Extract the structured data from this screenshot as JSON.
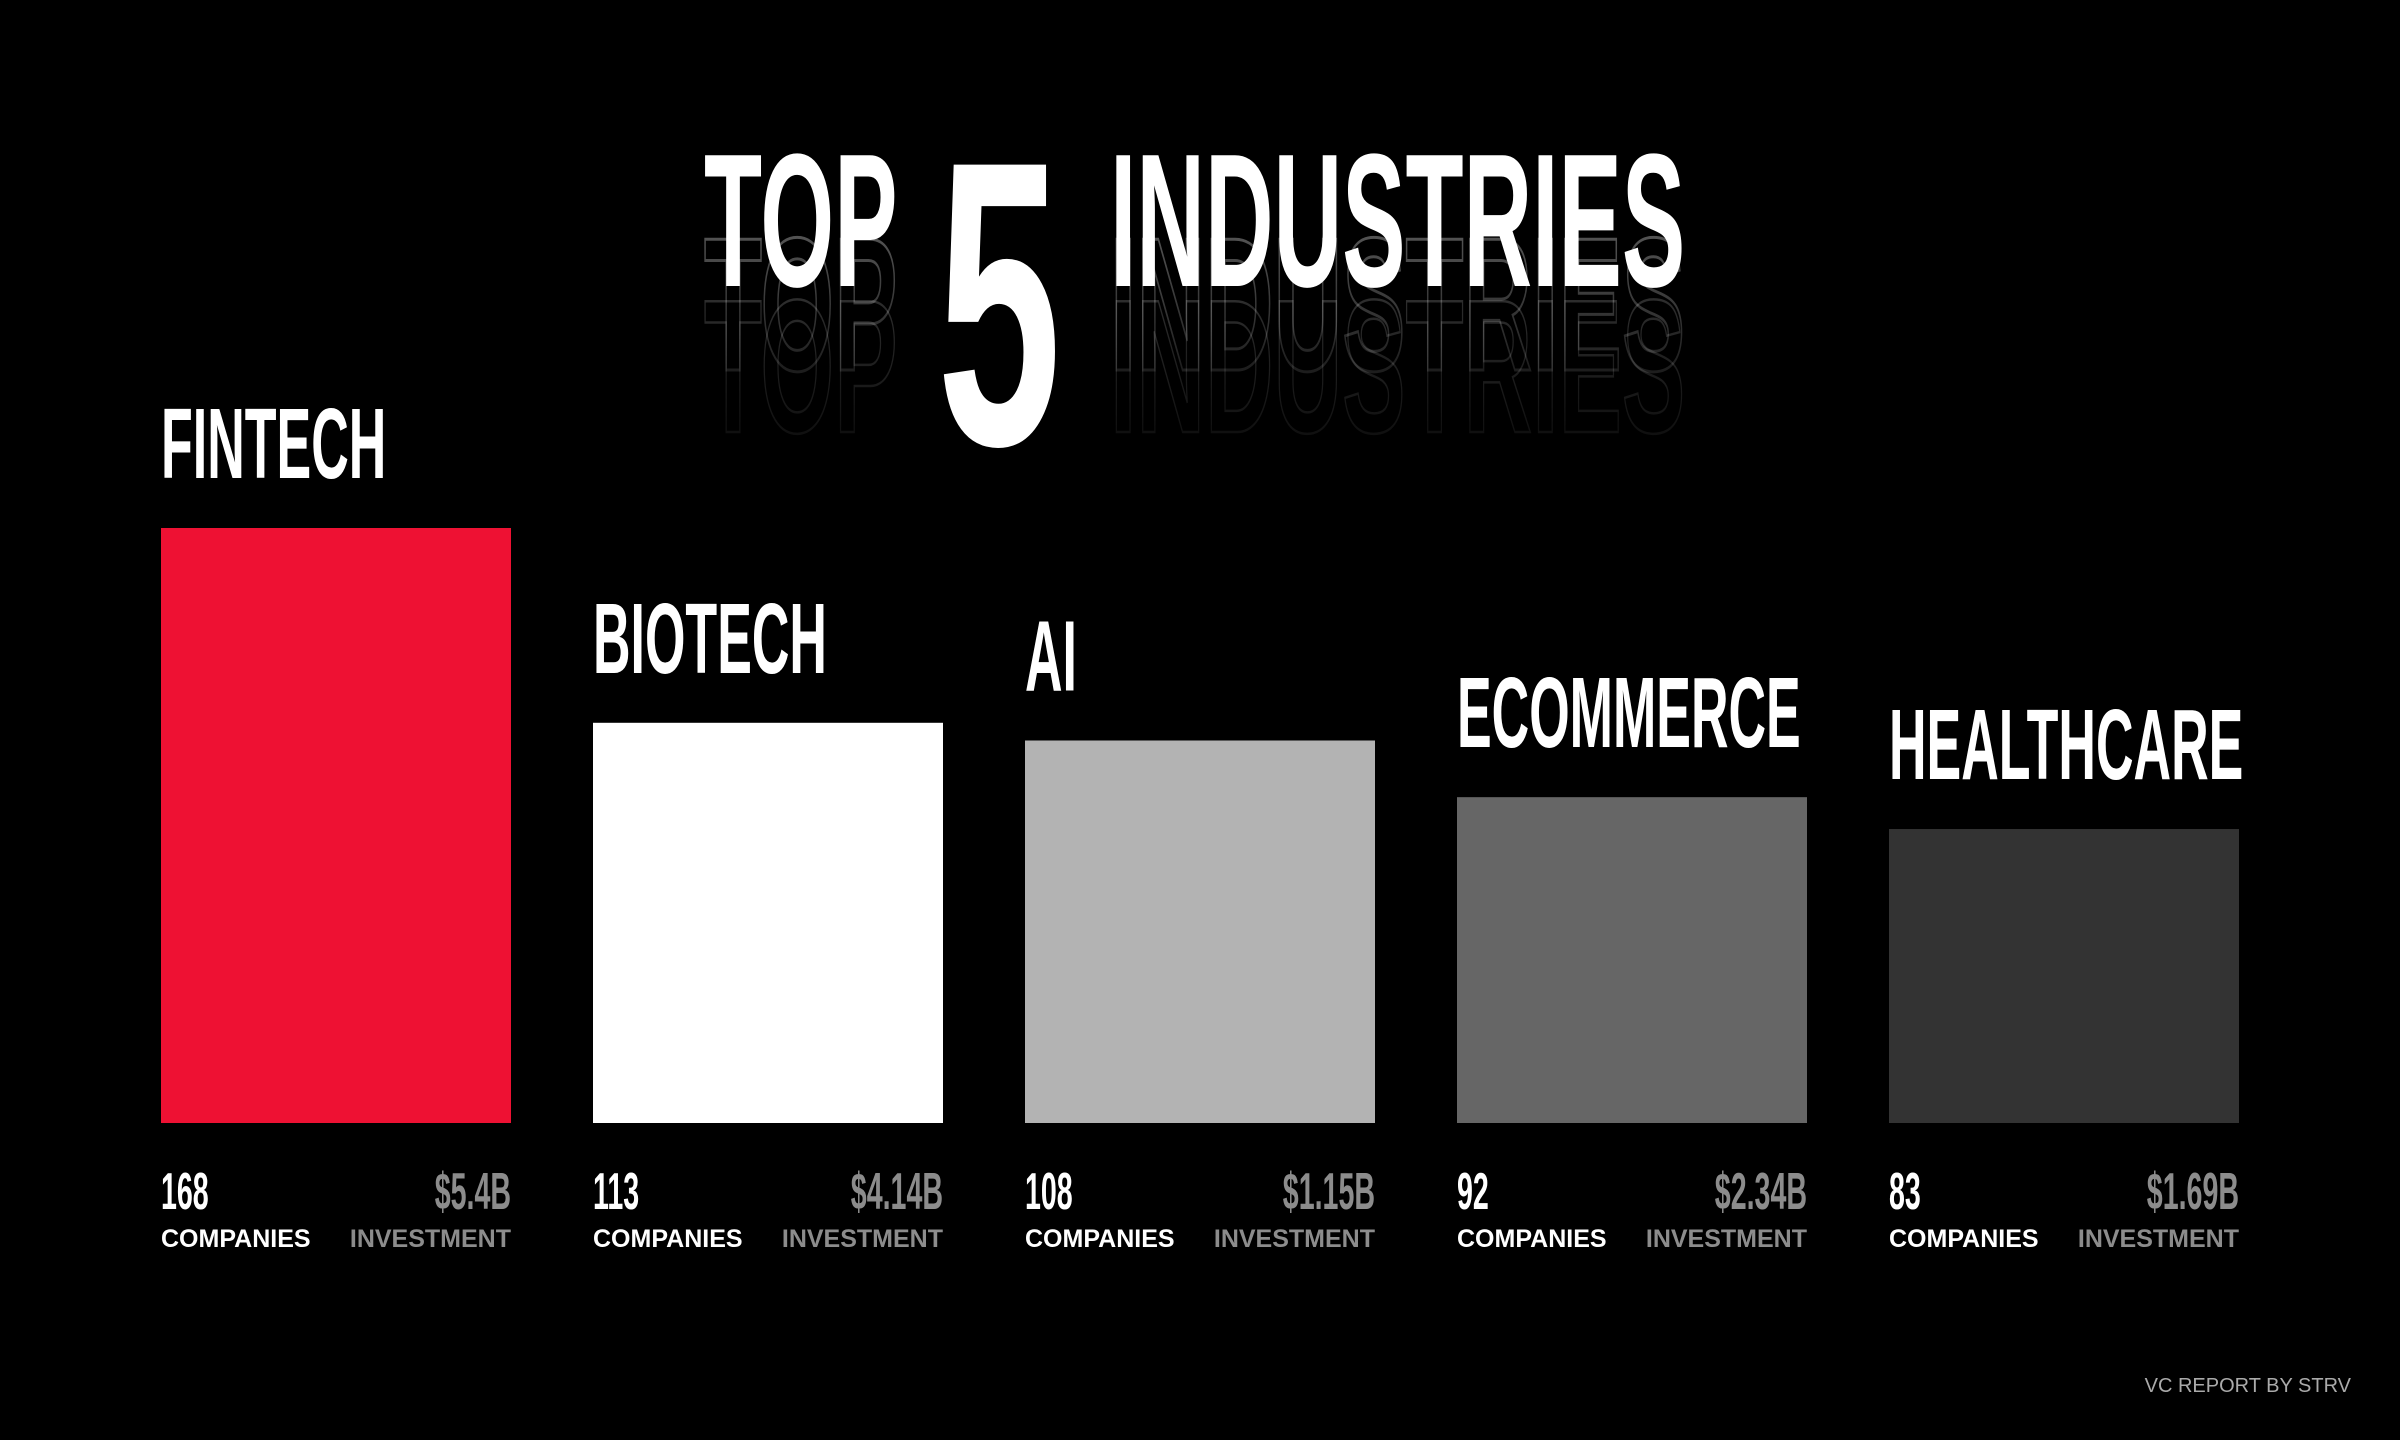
{
  "chart_data": {
    "type": "bar",
    "title": {
      "lead": "TOP",
      "number": "5",
      "rest": "INDUSTRIES"
    },
    "categories": [
      "FINTECH",
      "BIOTECH",
      "AI",
      "ECOMMERCE",
      "HEALTHCARE"
    ],
    "series": [
      {
        "name": "COMPANIES",
        "values": [
          168,
          113,
          108,
          92,
          83
        ],
        "colors": [
          "#ee1133",
          "#ffffff",
          "#b3b3b3",
          "#666666",
          "#333333"
        ]
      },
      {
        "name": "INVESTMENT",
        "values": [
          5.4,
          4.14,
          1.15,
          2.34,
          1.69
        ],
        "value_labels": [
          "$5.4B",
          "$4.14B",
          "$1.15B",
          "$2.34B",
          "$1.69B"
        ],
        "color": "#8c8c8c"
      }
    ],
    "ylim": [
      0,
      168
    ],
    "footer": "VC REPORT BY STRV"
  }
}
